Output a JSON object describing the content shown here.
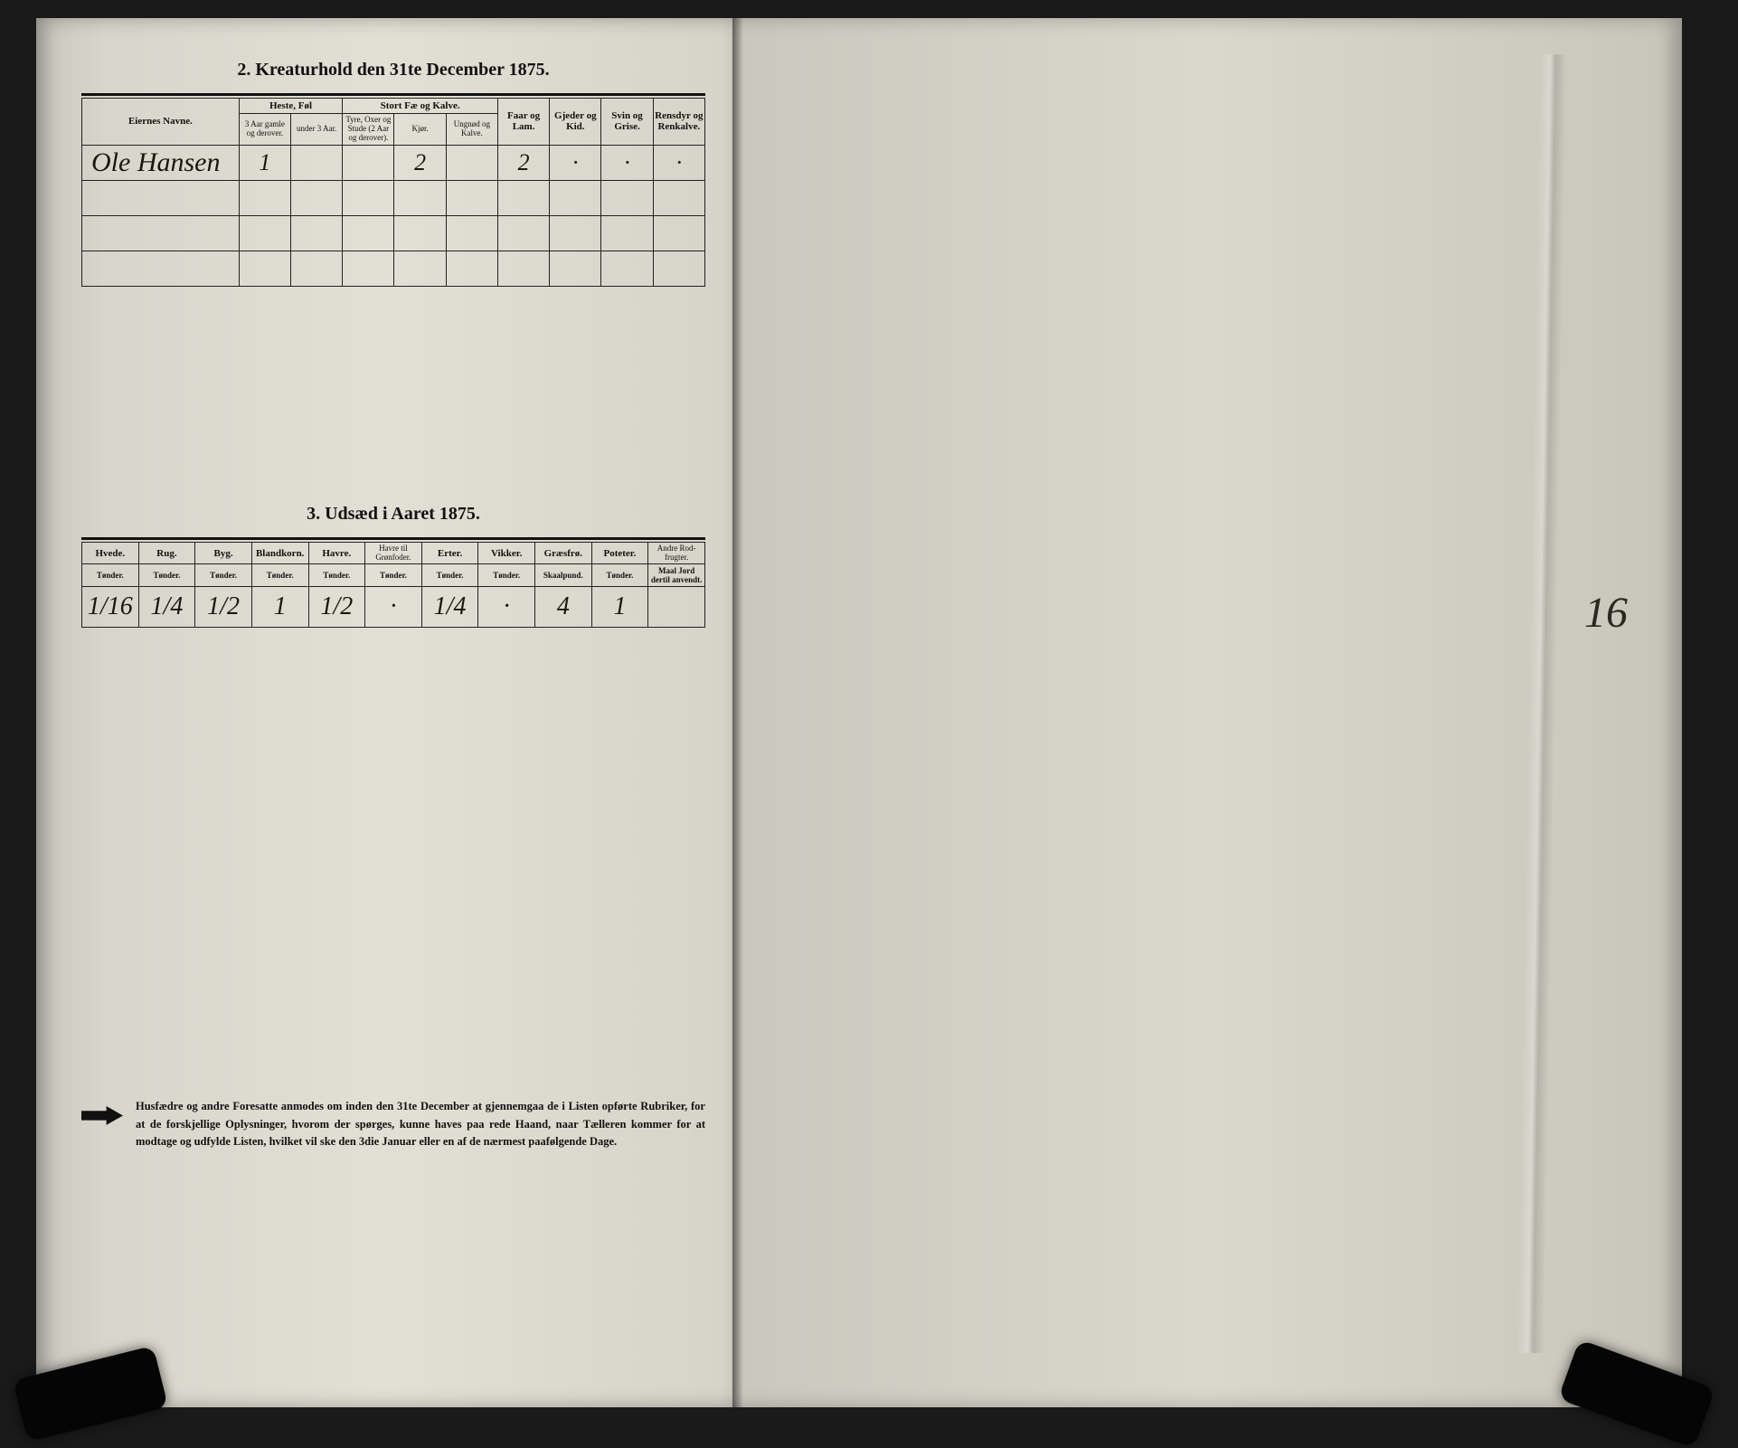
{
  "section2": {
    "title": "2.  Kreaturhold den 31te December 1875.",
    "headers": {
      "owner": "Eiernes Navne.",
      "horses_group": "Heste, Føl",
      "horses_old": "3 Aar gamle og derover.",
      "horses_young": "under 3 Aar.",
      "cattle_group": "Stort Fæ og Kalve.",
      "cattle_bulls": "Tyre, Oxer og Stude (2 Aar og derover).",
      "cattle_cows": "Kjør.",
      "cattle_calves": "Ungnød og Kalve.",
      "sheep": "Faar og Lam.",
      "goats": "Gjeder og Kid.",
      "pigs": "Svin og Grise.",
      "reindeer": "Rensdyr og Renkalve."
    },
    "rows": [
      {
        "owner": "Ole Hansen",
        "horses_old": "1",
        "horses_young": "",
        "cattle_bulls": "",
        "cattle_cows": "2",
        "cattle_calves": "",
        "sheep": "2",
        "goats": "·",
        "pigs": "·",
        "reindeer": "·"
      }
    ]
  },
  "section3": {
    "title": "3.  Udsæd i Aaret 1875.",
    "columns": [
      {
        "label": "Hvede.",
        "unit": "Tønder."
      },
      {
        "label": "Rug.",
        "unit": "Tønder."
      },
      {
        "label": "Byg.",
        "unit": "Tønder."
      },
      {
        "label": "Blandkorn.",
        "unit": "Tønder."
      },
      {
        "label": "Havre.",
        "unit": "Tønder."
      },
      {
        "label": "Havre til Grønfoder.",
        "unit": "Tønder."
      },
      {
        "label": "Erter.",
        "unit": "Tønder."
      },
      {
        "label": "Vikker.",
        "unit": "Tønder."
      },
      {
        "label": "Græsfrø.",
        "unit": "Skaalpund."
      },
      {
        "label": "Poteter.",
        "unit": "Tønder."
      },
      {
        "label": "Andre Rod-frugter.",
        "unit": "Maal Jord dertil anvendt."
      }
    ],
    "row": [
      "1/16",
      "1/4",
      "1/2",
      "1",
      "1/2",
      "·",
      "1/4",
      "·",
      "4",
      "1",
      ""
    ]
  },
  "notice": {
    "text": "Husfædre og andre Foresatte anmodes om inden den 31te December at gjennemgaa de i Listen opførte Rubriker, for at de forskjellige Oplysninger, hvorom der spørges, kunne haves paa rede Haand, naar Tælleren kommer for at modtage og udfylde Listen, hvilket vil ske den 3die Januar eller en af de nærmest paafølgende Dage."
  },
  "right_page_number": "16",
  "colors": {
    "ink": "#111111",
    "paper": "#dedccf",
    "background": "#1a1a1a"
  }
}
